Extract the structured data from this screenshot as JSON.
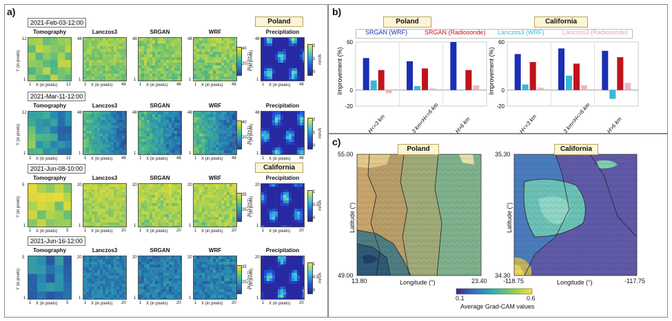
{
  "panel_a": {
    "label": "a)",
    "columns": [
      "Tomography",
      "Lanczos3",
      "SRGAN",
      "WRF",
      "Precipitation"
    ],
    "x_label": "X (in pixels)",
    "y_label": "Y (in pixels)",
    "cbar_label": "N",
    "cbar_label_full": "N (10⁶+1)",
    "precip_unit": "mm/h",
    "rows": [
      {
        "date": "2021-Feb-03-12:00",
        "region": "Poland",
        "tomo_max": "12",
        "hr_max": "48",
        "cbar_ticks": [
          "40",
          "20"
        ],
        "precip_ticks": [
          "2",
          "1",
          "0"
        ]
      },
      {
        "date": "2021-Mar-11-12:00",
        "region": "",
        "tomo_max": "12",
        "hr_max": "48",
        "cbar_ticks": [
          "40",
          "20"
        ],
        "precip_ticks": [
          "2",
          "1",
          "0"
        ]
      },
      {
        "date": "2021-Jun-08-10:00",
        "region": "California",
        "tomo_max": "5",
        "hr_max": "20",
        "cbar_ticks": [
          "35",
          "25"
        ],
        "precip_ticks": [
          "1",
          "0.5",
          "0"
        ]
      },
      {
        "date": "2021-Jun-16-12:00",
        "region": "",
        "tomo_max": "5",
        "hr_max": "20",
        "cbar_ticks": [
          "35",
          "25"
        ],
        "precip_ticks": [
          "1",
          "0.5",
          "0"
        ]
      }
    ]
  },
  "panel_b": {
    "label": "b)",
    "legend": [
      {
        "name": "SRGAN (WRF)",
        "color": "#1a2fb5"
      },
      {
        "name": "SRGAN (Radiosonde)",
        "color": "#c0141c"
      },
      {
        "name": "Lanczos3 (WRF)",
        "color": "#3ab7d6"
      },
      {
        "name": "Lanczos3 (Radiosonde)",
        "color": "#f0b6bd"
      }
    ],
    "charts": [
      {
        "region": "Poland"
      },
      {
        "region": "California"
      }
    ]
  },
  "chart_data": [
    {
      "type": "bar",
      "title": "Poland",
      "ylabel": "Improvement (%)",
      "categories": [
        "H<=3 km",
        "3 km<H<=6 km",
        "H>6 km"
      ],
      "ylim": [
        -20,
        60
      ],
      "yticks": [
        "60",
        "0",
        "-20"
      ],
      "series": [
        {
          "name": "SRGAN (WRF)",
          "values": [
            40,
            36,
            60
          ]
        },
        {
          "name": "Lanczos3 (WRF)",
          "values": [
            12,
            5,
            0
          ]
        },
        {
          "name": "SRGAN (Radiosonde)",
          "values": [
            25,
            27,
            25
          ]
        },
        {
          "name": "Lanczos3 (Radiosonde)",
          "values": [
            -4,
            2,
            6
          ]
        }
      ]
    },
    {
      "type": "bar",
      "title": "California",
      "ylabel": "Improvement (%)",
      "categories": [
        "H<=3 km",
        "3 km<H<=6 km",
        "H>6 km"
      ],
      "ylim": [
        -20,
        60
      ],
      "yticks": [
        "60",
        "0",
        "-20"
      ],
      "series": [
        {
          "name": "SRGAN (WRF)",
          "values": [
            45,
            52,
            49
          ]
        },
        {
          "name": "Lanczos3 (WRF)",
          "values": [
            7,
            18,
            -11
          ]
        },
        {
          "name": "SRGAN (Radiosonde)",
          "values": [
            35,
            33,
            41
          ]
        },
        {
          "name": "Lanczos3 (Radiosonde)",
          "values": [
            3,
            6,
            9
          ]
        }
      ]
    }
  ],
  "panel_c": {
    "label": "c)",
    "maps": [
      {
        "region": "Poland",
        "lat_top": "55.00",
        "lat_bottom": "49.00",
        "lon_left": "13.80",
        "lon_right": "23.40"
      },
      {
        "region": "California",
        "lat_top": "35.30",
        "lat_bottom": "34.30",
        "lon_left": "-118.75",
        "lon_right": "-117.75"
      }
    ],
    "lat_label": "Latitude (°)",
    "lon_label": "Longitude (°)",
    "cbar_min": "0.1",
    "cbar_max": "0.6",
    "cbar_label": "Average Grad-CAM values"
  }
}
